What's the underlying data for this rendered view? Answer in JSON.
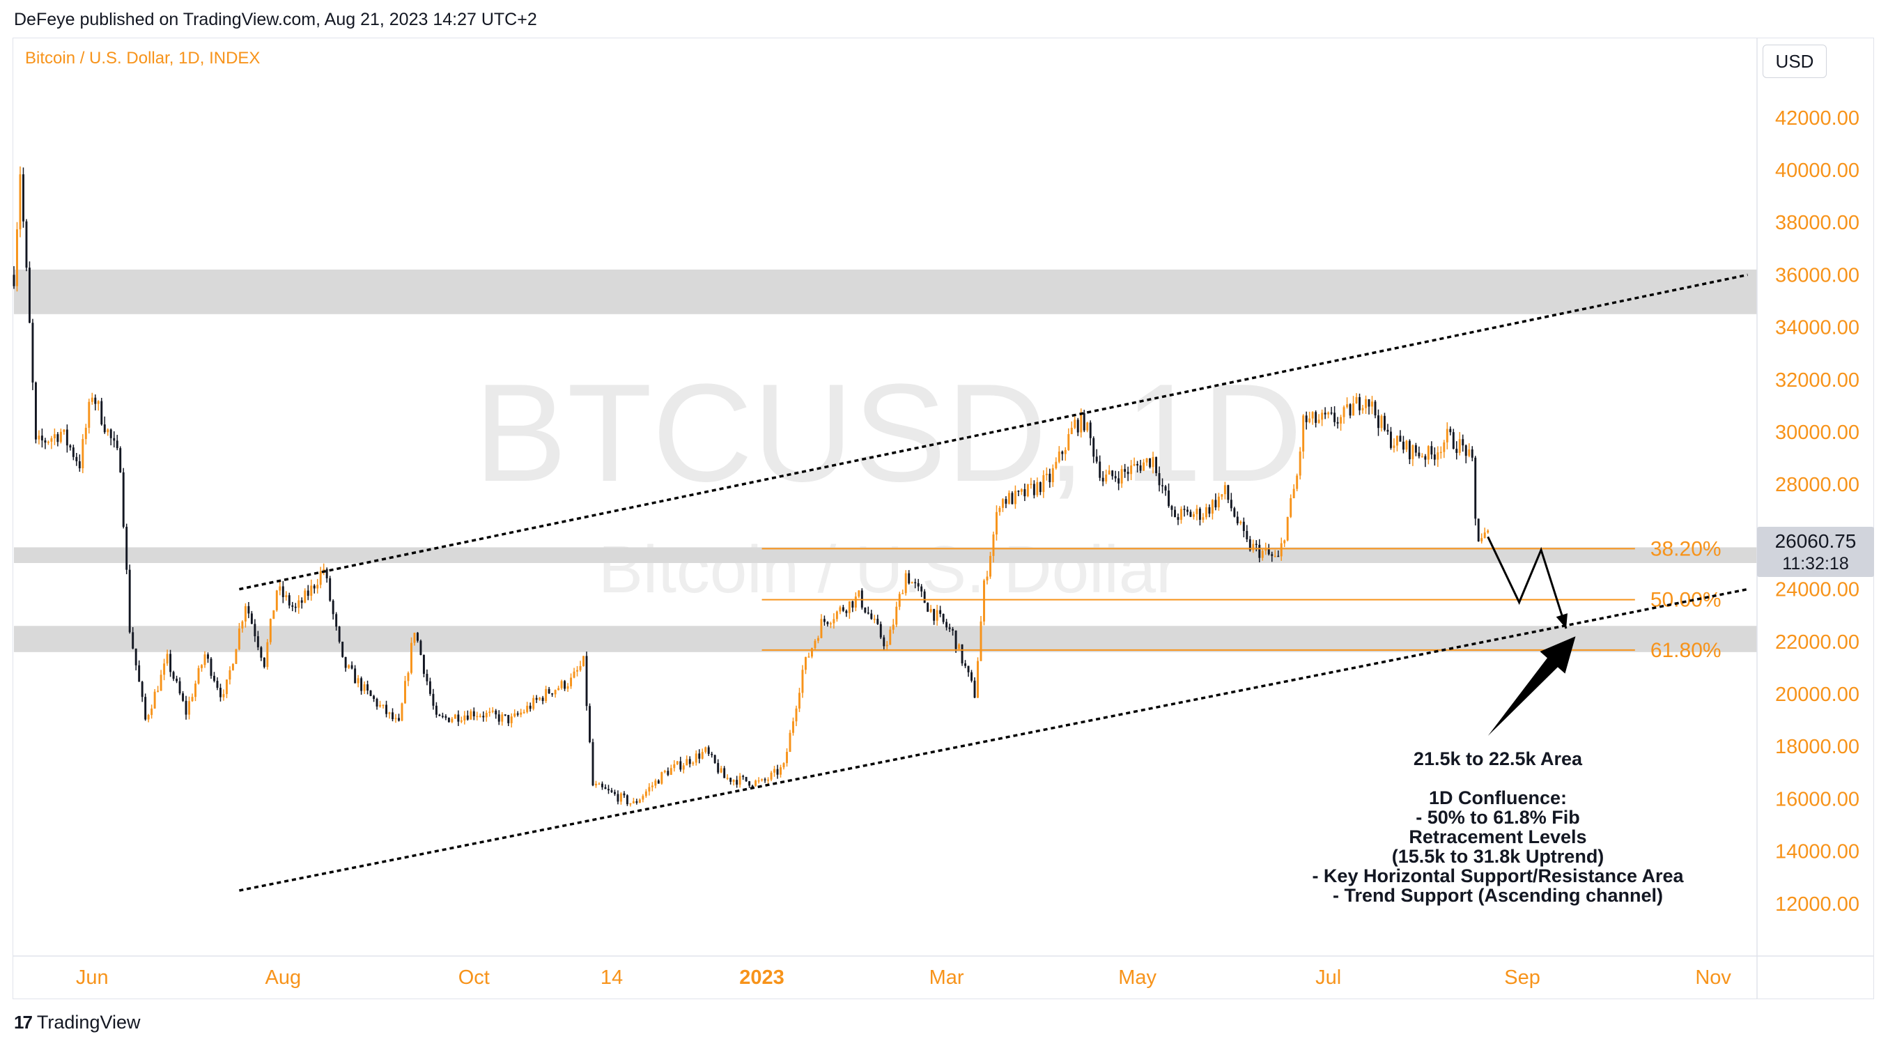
{
  "header": {
    "published_text": "DeFeye published on TradingView.com, Aug 21, 2023 14:27 UTC+2"
  },
  "symbol_label": "Bitcoin / U.S. Dollar, 1D, INDEX",
  "currency_button": "USD",
  "watermark": {
    "line1": "BTCUSD, 1D",
    "line2": "Bitcoin / U.S. Dollar"
  },
  "price_tag": {
    "price": "26060.75",
    "countdown": "11:32:18"
  },
  "footer": {
    "brand": "TradingView",
    "logo_glyph": "17"
  },
  "colors": {
    "bull": "#f7931a",
    "bear": "#131722",
    "fib": "#f7931a",
    "zone": "#d9d9d9",
    "axis_text": "#f7931a"
  },
  "annotation": {
    "lines": [
      "21.5k to 22.5k Area",
      "",
      "1D Confluence:",
      "- 50% to 61.8% Fib",
      "Retracement Levels",
      "(15.5k to 31.8k Uptrend)",
      "- Key Horizontal Support/Resistance Area",
      "- Trend Support (Ascending channel)"
    ]
  },
  "chart_data": {
    "type": "candlestick",
    "symbol": "BTCUSD",
    "interval": "1D",
    "x_axis": {
      "tick_labels": [
        "Jun",
        "Aug",
        "Oct",
        "14",
        "2023",
        "Mar",
        "May",
        "Jul",
        "Sep",
        "Nov"
      ],
      "range": [
        "2022-05-07",
        "2023-11-15"
      ]
    },
    "y_axis": {
      "range": [
        10000,
        45000
      ],
      "tick_labels": [
        "12000.00",
        "14000.00",
        "16000.00",
        "18000.00",
        "20000.00",
        "22000.00",
        "24000.00",
        "26000.00",
        "28000.00",
        "30000.00",
        "32000.00",
        "34000.00",
        "36000.00",
        "38000.00",
        "40000.00",
        "42000.00",
        "44000.00"
      ]
    },
    "last_price": 26060.75,
    "price_path": [
      [
        "2022-05-07",
        36000
      ],
      [
        "2022-05-09",
        40000
      ],
      [
        "2022-05-12",
        34000
      ],
      [
        "2022-05-14",
        29500
      ],
      [
        "2022-05-22",
        30000
      ],
      [
        "2022-05-28",
        28800
      ],
      [
        "2022-06-01",
        31500
      ],
      [
        "2022-06-06",
        30000
      ],
      [
        "2022-06-10",
        28800
      ],
      [
        "2022-06-13",
        22500
      ],
      [
        "2022-06-18",
        19000
      ],
      [
        "2022-06-25",
        21300
      ],
      [
        "2022-07-01",
        19300
      ],
      [
        "2022-07-07",
        21500
      ],
      [
        "2022-07-13",
        19800
      ],
      [
        "2022-07-20",
        23500
      ],
      [
        "2022-07-26",
        21200
      ],
      [
        "2022-07-30",
        24000
      ],
      [
        "2022-08-05",
        23200
      ],
      [
        "2022-08-10",
        24000
      ],
      [
        "2022-08-14",
        24800
      ],
      [
        "2022-08-20",
        21200
      ],
      [
        "2022-08-28",
        20000
      ],
      [
        "2022-09-07",
        18800
      ],
      [
        "2022-09-12",
        22500
      ],
      [
        "2022-09-19",
        19000
      ],
      [
        "2022-10-01",
        19300
      ],
      [
        "2022-10-13",
        19000
      ],
      [
        "2022-10-25",
        20100
      ],
      [
        "2022-11-01",
        20500
      ],
      [
        "2022-11-05",
        21200
      ],
      [
        "2022-11-08",
        16500
      ],
      [
        "2022-11-12",
        16300
      ],
      [
        "2022-11-21",
        15800
      ],
      [
        "2022-12-01",
        17000
      ],
      [
        "2022-12-14",
        17800
      ],
      [
        "2022-12-20",
        16800
      ],
      [
        "2023-01-01",
        16600
      ],
      [
        "2023-01-08",
        17200
      ],
      [
        "2023-01-14",
        20900
      ],
      [
        "2023-01-20",
        22700
      ],
      [
        "2023-02-01",
        23700
      ],
      [
        "2023-02-10",
        21800
      ],
      [
        "2023-02-16",
        24600
      ],
      [
        "2023-02-24",
        23200
      ],
      [
        "2023-03-03",
        22300
      ],
      [
        "2023-03-10",
        20000
      ],
      [
        "2023-03-13",
        24100
      ],
      [
        "2023-03-18",
        27400
      ],
      [
        "2023-03-24",
        27500
      ],
      [
        "2023-04-03",
        28200
      ],
      [
        "2023-04-11",
        30300
      ],
      [
        "2023-04-14",
        30400
      ],
      [
        "2023-04-20",
        28200
      ],
      [
        "2023-04-26",
        28400
      ],
      [
        "2023-05-06",
        29000
      ],
      [
        "2023-05-12",
        26800
      ],
      [
        "2023-05-22",
        26900
      ],
      [
        "2023-05-29",
        27700
      ],
      [
        "2023-06-05",
        25700
      ],
      [
        "2023-06-15",
        25100
      ],
      [
        "2023-06-21",
        28300
      ],
      [
        "2023-06-23",
        30400
      ],
      [
        "2023-07-05",
        30500
      ],
      [
        "2023-07-13",
        31400
      ],
      [
        "2023-07-20",
        29800
      ],
      [
        "2023-07-27",
        29300
      ],
      [
        "2023-08-03",
        29100
      ],
      [
        "2023-08-08",
        29800
      ],
      [
        "2023-08-14",
        29300
      ],
      [
        "2023-08-16",
        28700
      ],
      [
        "2023-08-17",
        26600
      ],
      [
        "2023-08-18",
        26000
      ],
      [
        "2023-08-21",
        26060.75
      ]
    ],
    "horizontal_zones": [
      {
        "from": 34500,
        "to": 36200
      },
      {
        "from": 25000,
        "to": 25600
      },
      {
        "from": 21600,
        "to": 22600
      }
    ],
    "fib_levels": [
      {
        "label": "38.20%",
        "price": 25550
      },
      {
        "label": "50.00%",
        "price": 23600
      },
      {
        "label": "61.80%",
        "price": 21680
      }
    ],
    "fib_start": "2023-01-01",
    "fib_end": "2023-10-07",
    "channel": {
      "upper": [
        [
          "2022-07-18",
          24000
        ],
        [
          "2023-11-12",
          36000
        ]
      ],
      "lower": [
        [
          "2022-07-18",
          12500
        ],
        [
          "2023-11-12",
          24000
        ]
      ]
    },
    "projection_path": [
      [
        "2023-08-21",
        26000
      ],
      [
        "2023-08-31",
        23500
      ],
      [
        "2023-09-07",
        25500
      ],
      [
        "2023-09-15",
        22500
      ]
    ],
    "arrow": {
      "from": [
        "2023-08-21",
        18400
      ],
      "to": [
        "2023-09-18",
        22200
      ]
    }
  }
}
